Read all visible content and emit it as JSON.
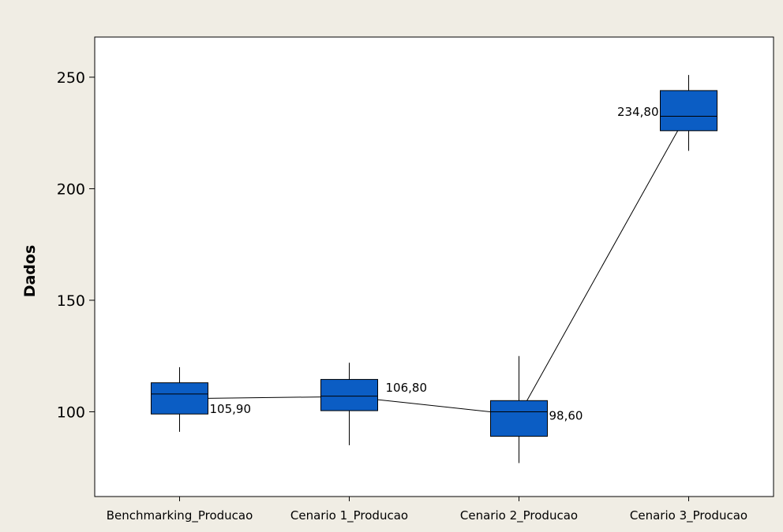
{
  "chart_data": {
    "type": "boxplot",
    "title": "",
    "xlabel": "",
    "ylabel": "Dados",
    "ylim": [
      62,
      268
    ],
    "yticks": [
      100,
      150,
      200,
      250
    ],
    "categories": [
      "Benchmarking_Producao",
      "Cenario 1_Producao",
      "Cenario 2_Producao",
      "Cenario 3_Producao"
    ],
    "boxes": [
      {
        "whisker_low": 91,
        "q1": 99,
        "median": 108,
        "q3": 113,
        "whisker_high": 120
      },
      {
        "whisker_low": 85,
        "q1": 100.5,
        "median": 107,
        "q3": 114.5,
        "whisker_high": 122
      },
      {
        "whisker_low": 77,
        "q1": 89,
        "median": 100,
        "q3": 105,
        "whisker_high": 125
      },
      {
        "whisker_low": 217,
        "q1": 226,
        "median": 232.5,
        "q3": 244,
        "whisker_high": 251
      }
    ],
    "mean_values": [
      105.9,
      106.8,
      98.6,
      234.8
    ],
    "mean_labels": [
      "105,90",
      "106,80",
      "98,60",
      "234,80"
    ],
    "box_color": "#0b5dc4",
    "grid": false,
    "legend": "none"
  }
}
